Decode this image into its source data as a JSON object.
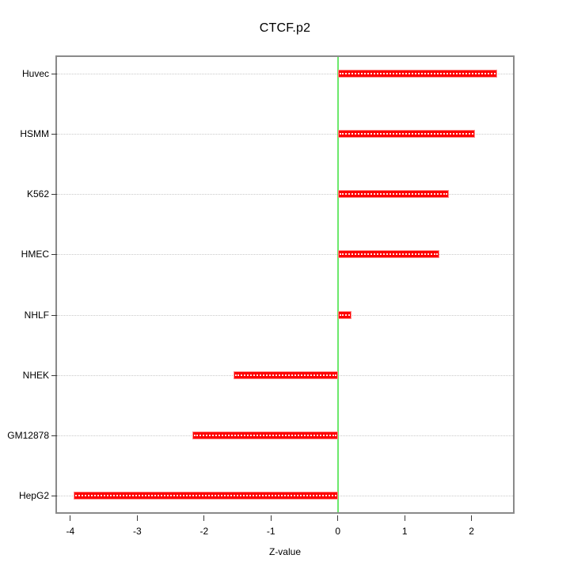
{
  "chart_data": {
    "type": "bar",
    "orientation": "horizontal",
    "title": "CTCF.p2",
    "xlabel": "Z-value",
    "ylabel": "",
    "categories": [
      "Huvec",
      "HSMM",
      "K562",
      "HMEC",
      "NHLF",
      "NHEK",
      "GM12878",
      "HepG2"
    ],
    "values": [
      2.38,
      2.05,
      1.66,
      1.52,
      0.2,
      -1.56,
      -2.18,
      -3.95
    ],
    "xlim": [
      -4.2,
      2.62
    ],
    "xticks": [
      -4,
      -3,
      -2,
      -1,
      0,
      1,
      2
    ],
    "grid": "dotted horizontal gridlines per category",
    "legend": "none",
    "colors": {
      "bar_fill": "#fe0000",
      "bar_border": "#ff8a8a",
      "bar_grid_overlay": "#ffffff",
      "zero_line": "#6ce86c",
      "grid_line": "#c9c9c9",
      "box_border": "#8a8a8a",
      "tick": "#3a3a3a",
      "text": "#000000",
      "background": "#ffffff"
    }
  }
}
